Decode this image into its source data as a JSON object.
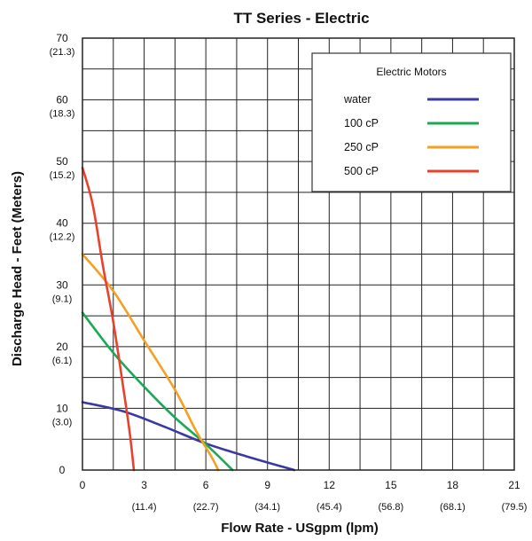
{
  "chart_data": {
    "type": "line",
    "title": "TT Series - Electric",
    "xlabel": "Flow Rate - USgpm (lpm)",
    "ylabel": "Discharge Head - Feet (Meters)",
    "xlim": [
      0,
      21
    ],
    "ylim": [
      0,
      70
    ],
    "grid": true,
    "legend_position": "top-right",
    "legend_title": "Electric Motors",
    "x_ticks": [
      {
        "value": 0,
        "label": "0",
        "sub": ""
      },
      {
        "value": 3,
        "label": "3",
        "sub": "(11.4)"
      },
      {
        "value": 6,
        "label": "6",
        "sub": "(22.7)"
      },
      {
        "value": 9,
        "label": "9",
        "sub": "(34.1)"
      },
      {
        "value": 12,
        "label": "12",
        "sub": "(45.4)"
      },
      {
        "value": 15,
        "label": "15",
        "sub": "(56.8)"
      },
      {
        "value": 18,
        "label": "18",
        "sub": "(68.1)"
      },
      {
        "value": 21,
        "label": "21",
        "sub": "(79.5)"
      }
    ],
    "y_ticks": [
      {
        "value": 0,
        "label": "0",
        "sub": ""
      },
      {
        "value": 10,
        "label": "10",
        "sub": "(3.0)"
      },
      {
        "value": 20,
        "label": "20",
        "sub": "(6.1)"
      },
      {
        "value": 30,
        "label": "30",
        "sub": "(9.1)"
      },
      {
        "value": 40,
        "label": "40",
        "sub": "(12.2)"
      },
      {
        "value": 50,
        "label": "50",
        "sub": "(15.2)"
      },
      {
        "value": 60,
        "label": "60",
        "sub": "(18.3)"
      },
      {
        "value": 70,
        "label": "70",
        "sub": "(21.3)"
      }
    ],
    "series": [
      {
        "name": "water",
        "color": "#3a3aa0",
        "points": [
          [
            0,
            11
          ],
          [
            2,
            9.5
          ],
          [
            4,
            7
          ],
          [
            6,
            4.3
          ],
          [
            8,
            2.2
          ],
          [
            10.3,
            0
          ]
        ]
      },
      {
        "name": "100 cP",
        "color": "#1aaa55",
        "points": [
          [
            0,
            25.5
          ],
          [
            1.5,
            19
          ],
          [
            3,
            13.5
          ],
          [
            4.5,
            8.5
          ],
          [
            6,
            4.2
          ],
          [
            7.3,
            0
          ]
        ]
      },
      {
        "name": "250 cP",
        "color": "#f5a023",
        "points": [
          [
            0,
            35
          ],
          [
            1.5,
            29
          ],
          [
            3,
            21
          ],
          [
            4.5,
            13
          ],
          [
            5.5,
            6.5
          ],
          [
            6.3,
            2
          ],
          [
            6.6,
            0
          ]
        ]
      },
      {
        "name": "500 cP",
        "color": "#e8412c",
        "points": [
          [
            0,
            49
          ],
          [
            0.5,
            43
          ],
          [
            1,
            33
          ],
          [
            1.5,
            24
          ],
          [
            2,
            13
          ],
          [
            2.3,
            6
          ],
          [
            2.5,
            0
          ]
        ]
      }
    ]
  }
}
